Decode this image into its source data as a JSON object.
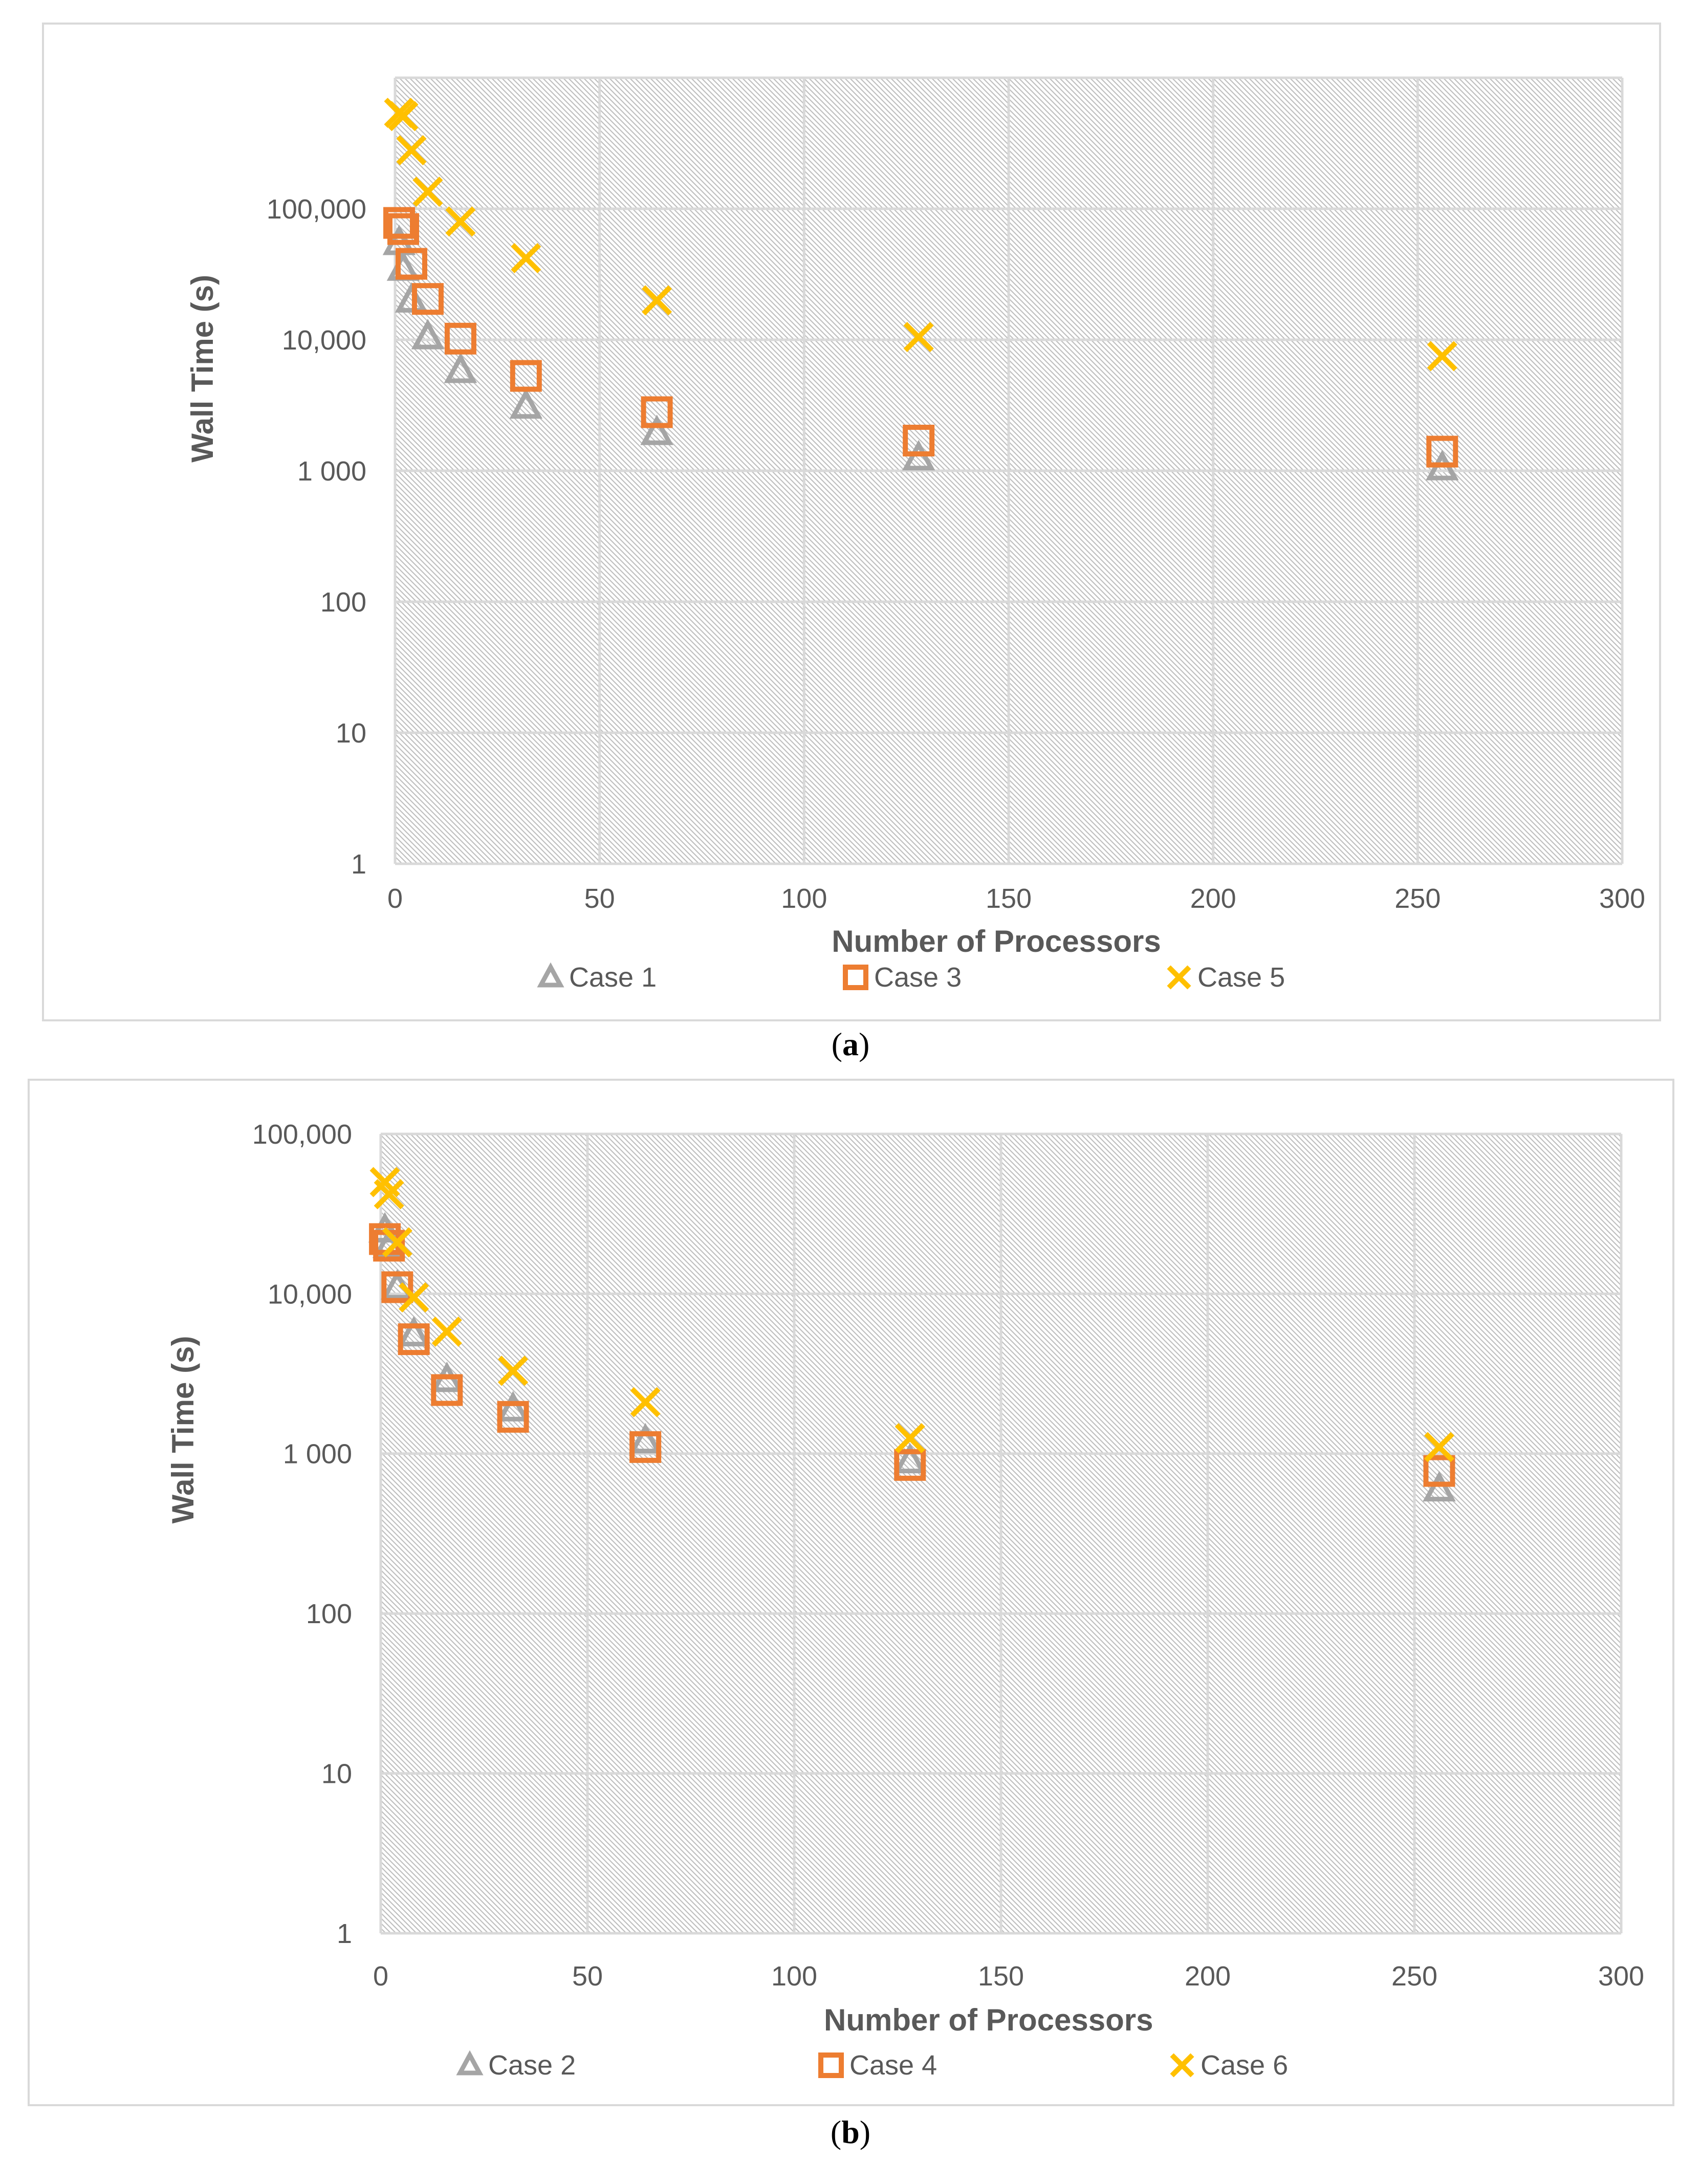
{
  "panels": [
    {
      "caption_letter": "a",
      "chart_data": {
        "type": "scatter",
        "title": "",
        "xlabel": "Number of Processors",
        "ylabel": "Wall Time (s)",
        "xlim": [
          0,
          300
        ],
        "ylim": [
          1,
          1000000
        ],
        "yscale": "log",
        "grid": true,
        "legend_position": "bottom",
        "x_ticks": [
          "0",
          "50",
          "100",
          "150",
          "200",
          "250",
          "300"
        ],
        "y_ticks": [
          "1",
          "10",
          "100",
          "1 000",
          "10,000",
          "100,000"
        ],
        "series": [
          {
            "name": "Case 1",
            "marker": "triangle",
            "color": "#a5a5a5",
            "x": [
              1,
              2,
              4,
              8,
              16,
              32,
              64,
              128,
              256
            ],
            "y": [
              55000,
              35000,
              20000,
              10500,
              5800,
              3100,
              1950,
              1250,
              1050
            ]
          },
          {
            "name": "Case 3",
            "marker": "square",
            "color": "#ed7d31",
            "x": [
              1,
              2,
              4,
              8,
              16,
              32,
              64,
              128,
              256
            ],
            "y": [
              78000,
              70000,
              38000,
              20500,
              10200,
              5300,
              2800,
              1700,
              1400
            ]
          },
          {
            "name": "Case 5",
            "marker": "x",
            "color": "#ffc000",
            "x": [
              1,
              2,
              4,
              8,
              16,
              32,
              64,
              128,
              256
            ],
            "y": [
              540000,
              510000,
              280000,
              135000,
              80000,
              42000,
              20000,
              10500,
              7500
            ]
          }
        ]
      }
    },
    {
      "caption_letter": "b",
      "chart_data": {
        "type": "scatter",
        "title": "",
        "xlabel": "Number of Processors",
        "ylabel": "Wall Time (s)",
        "xlim": [
          0,
          300
        ],
        "ylim": [
          1,
          100000
        ],
        "yscale": "log",
        "grid": true,
        "legend_position": "bottom",
        "x_ticks": [
          "0",
          "50",
          "100",
          "150",
          "200",
          "250",
          "300"
        ],
        "y_ticks": [
          "1",
          "10",
          "100",
          "1 000",
          "10,000",
          "100,000"
        ],
        "series": [
          {
            "name": "Case 2",
            "marker": "triangle",
            "color": "#a5a5a5",
            "x": [
              1,
              2,
              4,
              8,
              16,
              32,
              64,
              128,
              256
            ],
            "y": [
              25000,
              20000,
              11000,
              5600,
              2900,
              1900,
              1200,
              900,
              600
            ]
          },
          {
            "name": "Case 4",
            "marker": "square",
            "color": "#ed7d31",
            "x": [
              1,
              2,
              4,
              8,
              16,
              32,
              64,
              128,
              256
            ],
            "y": [
              22000,
              20000,
              11000,
              5200,
              2500,
              1700,
              1100,
              850,
              780
            ]
          },
          {
            "name": "Case 6",
            "marker": "x",
            "color": "#ffc000",
            "x": [
              1,
              2,
              4,
              8,
              16,
              32,
              64,
              128,
              256
            ],
            "y": [
              50000,
              42000,
              21000,
              9500,
              5800,
              3300,
              2100,
              1250,
              1100
            ]
          }
        ]
      }
    }
  ]
}
